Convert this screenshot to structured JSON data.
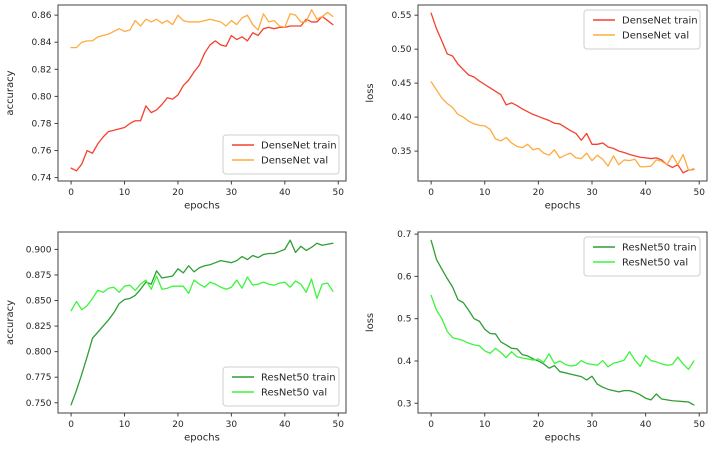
{
  "figure": {
    "background": "#ffffff",
    "spine_color": "#404040",
    "tick_label_color": "#262626"
  },
  "chart_data": [
    {
      "id": "densenet-accuracy",
      "type": "line",
      "title": "",
      "xlabel": "epochs",
      "ylabel": "accuracy",
      "xlim": [
        -2.45,
        51.45
      ],
      "ylim": [
        0.7375,
        0.8675
      ],
      "xticks": [
        0,
        10,
        20,
        30,
        40,
        50
      ],
      "xtick_labels": [
        "0",
        "10",
        "20",
        "30",
        "40",
        "50"
      ],
      "yticks": [
        0.74,
        0.76,
        0.78,
        0.8,
        0.82,
        0.84,
        0.86
      ],
      "ytick_labels": [
        "0.74",
        "0.76",
        "0.78",
        "0.80",
        "0.82",
        "0.84",
        "0.86"
      ],
      "grid": false,
      "legend_position": "lower-right",
      "x": [
        0,
        1,
        2,
        3,
        4,
        5,
        6,
        7,
        8,
        9,
        10,
        11,
        12,
        13,
        14,
        15,
        16,
        17,
        18,
        19,
        20,
        21,
        22,
        23,
        24,
        25,
        26,
        27,
        28,
        29,
        30,
        31,
        32,
        33,
        34,
        35,
        36,
        37,
        38,
        39,
        40,
        41,
        42,
        43,
        44,
        45,
        46,
        47,
        48,
        49
      ],
      "series": [
        {
          "name": "DenseNet train",
          "color": "#f6402f",
          "values": [
            0.747,
            0.745,
            0.75,
            0.76,
            0.758,
            0.765,
            0.77,
            0.774,
            0.775,
            0.776,
            0.777,
            0.78,
            0.782,
            0.782,
            0.793,
            0.788,
            0.79,
            0.794,
            0.799,
            0.798,
            0.801,
            0.808,
            0.812,
            0.818,
            0.823,
            0.832,
            0.838,
            0.841,
            0.838,
            0.837,
            0.845,
            0.842,
            0.844,
            0.841,
            0.847,
            0.845,
            0.85,
            0.851,
            0.85,
            0.851,
            0.851,
            0.852,
            0.852,
            0.852,
            0.857,
            0.855,
            0.855,
            0.859,
            0.856,
            0.853
          ]
        },
        {
          "name": "DenseNet val",
          "color": "#ffab40",
          "values": [
            0.836,
            0.836,
            0.84,
            0.841,
            0.841,
            0.844,
            0.845,
            0.846,
            0.848,
            0.85,
            0.848,
            0.849,
            0.856,
            0.852,
            0.857,
            0.855,
            0.857,
            0.854,
            0.856,
            0.853,
            0.86,
            0.856,
            0.855,
            0.855,
            0.855,
            0.856,
            0.857,
            0.856,
            0.855,
            0.852,
            0.856,
            0.853,
            0.858,
            0.86,
            0.853,
            0.849,
            0.861,
            0.855,
            0.856,
            0.852,
            0.851,
            0.861,
            0.86,
            0.855,
            0.855,
            0.864,
            0.857,
            0.859,
            0.862,
            0.859
          ]
        }
      ]
    },
    {
      "id": "densenet-loss",
      "type": "line",
      "title": "",
      "xlabel": "epochs",
      "ylabel": "loss",
      "xlim": [
        -2.45,
        51.45
      ],
      "ylim": [
        0.306,
        0.565
      ],
      "xticks": [
        0,
        10,
        20,
        30,
        40,
        50
      ],
      "xtick_labels": [
        "0",
        "10",
        "20",
        "30",
        "40",
        "50"
      ],
      "yticks": [
        0.35,
        0.4,
        0.45,
        0.5,
        0.55
      ],
      "ytick_labels": [
        "0.35",
        "0.40",
        "0.45",
        "0.50",
        "0.55"
      ],
      "grid": false,
      "legend_position": "upper-right",
      "x": [
        0,
        1,
        2,
        3,
        4,
        5,
        6,
        7,
        8,
        9,
        10,
        11,
        12,
        13,
        14,
        15,
        16,
        17,
        18,
        19,
        20,
        21,
        22,
        23,
        24,
        25,
        26,
        27,
        28,
        29,
        30,
        31,
        32,
        33,
        34,
        35,
        36,
        37,
        38,
        39,
        40,
        41,
        42,
        43,
        44,
        45,
        46,
        47,
        48,
        49
      ],
      "series": [
        {
          "name": "DenseNet train",
          "color": "#f6402f",
          "values": [
            0.553,
            0.53,
            0.512,
            0.493,
            0.49,
            0.478,
            0.47,
            0.462,
            0.459,
            0.453,
            0.448,
            0.443,
            0.438,
            0.433,
            0.418,
            0.421,
            0.417,
            0.412,
            0.408,
            0.404,
            0.401,
            0.398,
            0.395,
            0.391,
            0.39,
            0.385,
            0.38,
            0.376,
            0.366,
            0.376,
            0.36,
            0.36,
            0.362,
            0.356,
            0.354,
            0.35,
            0.348,
            0.345,
            0.343,
            0.341,
            0.34,
            0.339,
            0.34,
            0.337,
            0.33,
            0.326,
            0.33,
            0.318,
            0.322,
            0.323
          ]
        },
        {
          "name": "DenseNet val",
          "color": "#ffab40",
          "values": [
            0.452,
            0.44,
            0.428,
            0.42,
            0.414,
            0.404,
            0.4,
            0.394,
            0.39,
            0.388,
            0.387,
            0.382,
            0.368,
            0.365,
            0.37,
            0.362,
            0.357,
            0.355,
            0.36,
            0.352,
            0.354,
            0.347,
            0.344,
            0.352,
            0.34,
            0.344,
            0.347,
            0.34,
            0.339,
            0.347,
            0.336,
            0.344,
            0.338,
            0.328,
            0.343,
            0.33,
            0.337,
            0.336,
            0.338,
            0.327,
            0.327,
            0.328,
            0.337,
            0.335,
            0.33,
            0.344,
            0.33,
            0.345,
            0.322,
            0.324
          ]
        }
      ]
    },
    {
      "id": "resnet50-accuracy",
      "type": "line",
      "title": "",
      "xlabel": "epochs",
      "ylabel": "accuracy",
      "xlim": [
        -2.45,
        51.45
      ],
      "ylim": [
        0.74,
        0.917
      ],
      "xticks": [
        0,
        10,
        20,
        30,
        40,
        50
      ],
      "xtick_labels": [
        "0",
        "10",
        "20",
        "30",
        "40",
        "50"
      ],
      "yticks": [
        0.75,
        0.775,
        0.8,
        0.825,
        0.85,
        0.875,
        0.9
      ],
      "ytick_labels": [
        "0.750",
        "0.775",
        "0.800",
        "0.825",
        "0.850",
        "0.875",
        "0.900"
      ],
      "grid": false,
      "legend_position": "lower-right",
      "x": [
        0,
        1,
        2,
        3,
        4,
        5,
        6,
        7,
        8,
        9,
        10,
        11,
        12,
        13,
        14,
        15,
        16,
        17,
        18,
        19,
        20,
        21,
        22,
        23,
        24,
        25,
        26,
        27,
        28,
        29,
        30,
        31,
        32,
        33,
        34,
        35,
        36,
        37,
        38,
        39,
        40,
        41,
        42,
        43,
        44,
        45,
        46,
        47,
        48,
        49
      ],
      "series": [
        {
          "name": "ResNet50 train",
          "color": "#2f9e33",
          "values": [
            0.748,
            0.762,
            0.778,
            0.795,
            0.813,
            0.819,
            0.825,
            0.831,
            0.838,
            0.847,
            0.851,
            0.852,
            0.855,
            0.861,
            0.868,
            0.866,
            0.879,
            0.872,
            0.873,
            0.874,
            0.881,
            0.877,
            0.884,
            0.878,
            0.882,
            0.884,
            0.885,
            0.887,
            0.889,
            0.888,
            0.887,
            0.889,
            0.893,
            0.89,
            0.894,
            0.892,
            0.895,
            0.896,
            0.896,
            0.898,
            0.9,
            0.909,
            0.897,
            0.903,
            0.899,
            0.902,
            0.906,
            0.904,
            0.905,
            0.906
          ]
        },
        {
          "name": "ResNet50 val",
          "color": "#3cf53c",
          "values": [
            0.84,
            0.849,
            0.841,
            0.845,
            0.852,
            0.86,
            0.858,
            0.862,
            0.863,
            0.858,
            0.864,
            0.865,
            0.86,
            0.866,
            0.87,
            0.861,
            0.874,
            0.861,
            0.862,
            0.864,
            0.864,
            0.864,
            0.857,
            0.87,
            0.866,
            0.863,
            0.868,
            0.866,
            0.863,
            0.861,
            0.863,
            0.87,
            0.862,
            0.873,
            0.865,
            0.866,
            0.868,
            0.866,
            0.865,
            0.867,
            0.868,
            0.863,
            0.869,
            0.866,
            0.858,
            0.871,
            0.852,
            0.866,
            0.867,
            0.859
          ]
        }
      ]
    },
    {
      "id": "resnet50-loss",
      "type": "line",
      "title": "",
      "xlabel": "epochs",
      "ylabel": "loss",
      "xlim": [
        -2.45,
        51.45
      ],
      "ylim": [
        0.277,
        0.705
      ],
      "xticks": [
        0,
        10,
        20,
        30,
        40,
        50
      ],
      "xtick_labels": [
        "0",
        "10",
        "20",
        "30",
        "40",
        "50"
      ],
      "yticks": [
        0.3,
        0.4,
        0.5,
        0.6,
        0.7
      ],
      "ytick_labels": [
        "0.3",
        "0.4",
        "0.5",
        "0.6",
        "0.7"
      ],
      "grid": false,
      "legend_position": "upper-right",
      "x": [
        0,
        1,
        2,
        3,
        4,
        5,
        6,
        7,
        8,
        9,
        10,
        11,
        12,
        13,
        14,
        15,
        16,
        17,
        18,
        19,
        20,
        21,
        22,
        23,
        24,
        25,
        26,
        27,
        28,
        29,
        30,
        31,
        32,
        33,
        34,
        35,
        36,
        37,
        38,
        39,
        40,
        41,
        42,
        43,
        44,
        45,
        46,
        47,
        48,
        49
      ],
      "series": [
        {
          "name": "ResNet50 train",
          "color": "#2f9e33",
          "values": [
            0.685,
            0.64,
            0.617,
            0.595,
            0.575,
            0.545,
            0.538,
            0.52,
            0.5,
            0.494,
            0.475,
            0.465,
            0.464,
            0.445,
            0.438,
            0.43,
            0.429,
            0.415,
            0.412,
            0.405,
            0.4,
            0.393,
            0.383,
            0.389,
            0.375,
            0.372,
            0.369,
            0.366,
            0.363,
            0.355,
            0.364,
            0.345,
            0.338,
            0.333,
            0.33,
            0.327,
            0.33,
            0.33,
            0.326,
            0.32,
            0.312,
            0.308,
            0.322,
            0.31,
            0.308,
            0.306,
            0.305,
            0.304,
            0.303,
            0.296
          ]
        },
        {
          "name": "ResNet50 val",
          "color": "#3cf53c",
          "values": [
            0.555,
            0.52,
            0.5,
            0.47,
            0.455,
            0.452,
            0.448,
            0.442,
            0.438,
            0.436,
            0.424,
            0.418,
            0.43,
            0.42,
            0.408,
            0.422,
            0.41,
            0.407,
            0.405,
            0.402,
            0.405,
            0.397,
            0.417,
            0.394,
            0.4,
            0.392,
            0.388,
            0.39,
            0.401,
            0.394,
            0.392,
            0.39,
            0.401,
            0.386,
            0.395,
            0.398,
            0.402,
            0.422,
            0.402,
            0.387,
            0.413,
            0.401,
            0.398,
            0.393,
            0.39,
            0.392,
            0.409,
            0.393,
            0.38,
            0.4
          ]
        }
      ]
    }
  ]
}
